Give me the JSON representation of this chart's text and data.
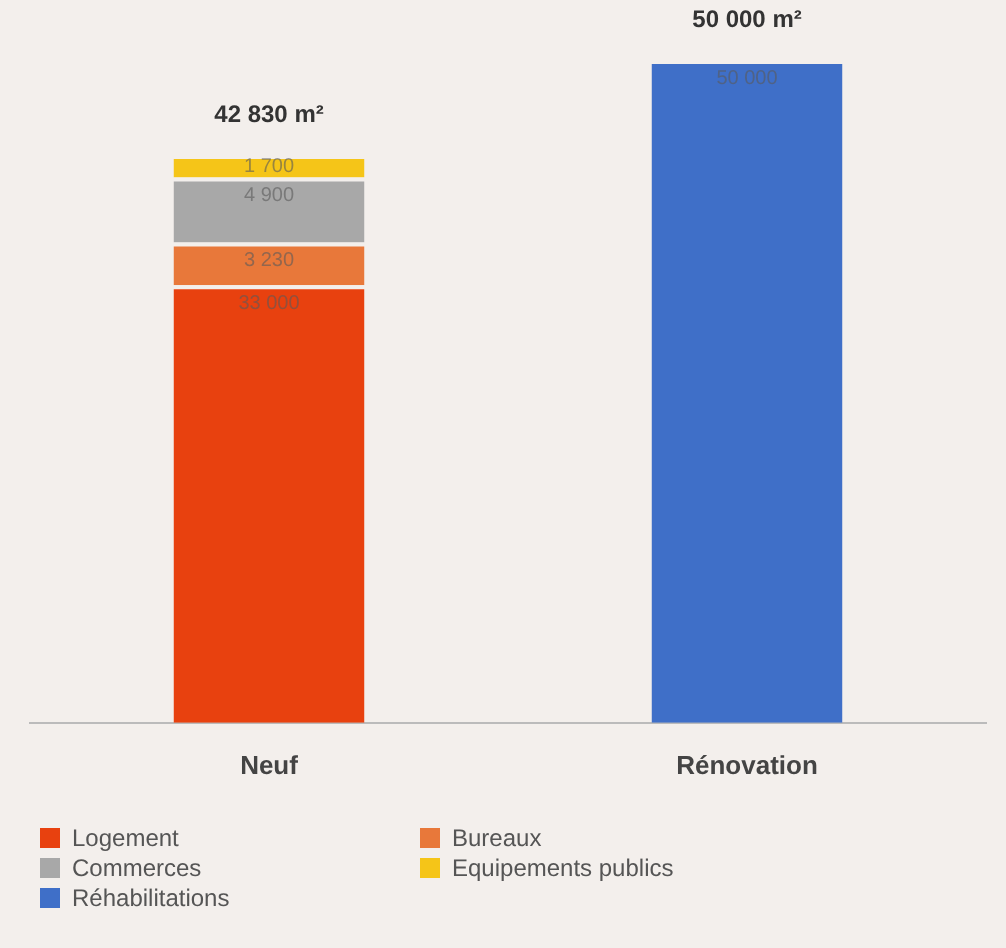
{
  "chart_data": {
    "type": "bar",
    "stacked": true,
    "categories": [
      "Neuf",
      "Rénovation"
    ],
    "series": [
      {
        "name": "Logement",
        "color": "#e8410f",
        "values": [
          33000,
          null
        ],
        "value_labels": [
          "33 000",
          null
        ]
      },
      {
        "name": "Bureaux",
        "color": "#e8783a",
        "values": [
          3230,
          null
        ],
        "value_labels": [
          "3 230",
          null
        ]
      },
      {
        "name": "Commerces",
        "color": "#a8a8a8",
        "values": [
          4900,
          null
        ],
        "value_labels": [
          "4 900",
          null
        ]
      },
      {
        "name": "Equipements publics",
        "color": "#f5c518",
        "values": [
          1700,
          null
        ],
        "value_labels": [
          "1 700",
          null
        ]
      },
      {
        "name": "Réhabilitations",
        "color": "#3f6fc8",
        "values": [
          null,
          50000
        ],
        "value_labels": [
          null,
          "50 000"
        ]
      }
    ],
    "totals": [
      "42 830 m²",
      "50 000 m²"
    ],
    "legend": "bottom",
    "grid": false
  }
}
